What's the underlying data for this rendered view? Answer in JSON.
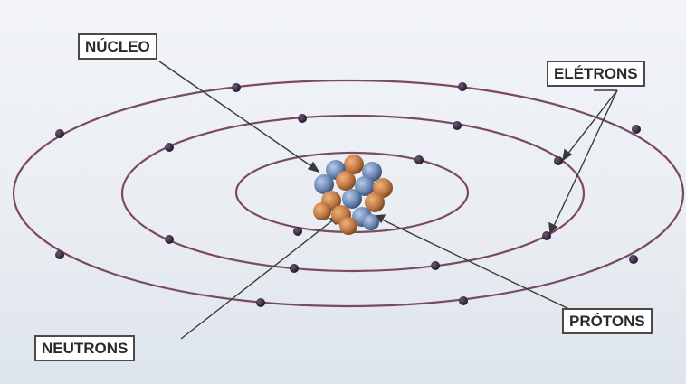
{
  "labels": {
    "nucleus": "NÚCLEO",
    "electrons": "ELÉTRONS",
    "protons": "PRÓTONS",
    "neutrons": "NEUTRONS"
  },
  "colors": {
    "background_top": "#eef1f5",
    "background_bottom": "#dfe6ee",
    "orbit": "#7a4a63",
    "electron": "#2a1f33",
    "proton": "#c07a45",
    "neutron": "#6d88b4",
    "pointer": "#3a3a3a"
  },
  "orbits": {
    "count": 3,
    "electron_count": 18
  }
}
